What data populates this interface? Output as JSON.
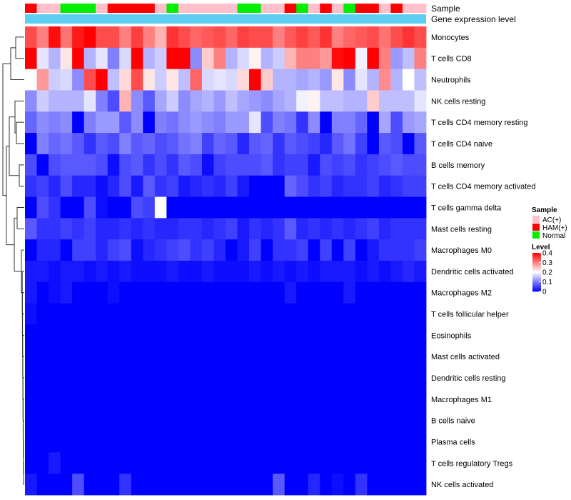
{
  "chart_data": {
    "type": "heatmap",
    "title": "",
    "annotation_rows": [
      "Sample",
      "Gene expression level"
    ],
    "gene_expression_color": "#5ecdf2",
    "sample_groups": [
      "HAM(+)",
      "AC(+)",
      "AC(+)",
      "Normal",
      "Normal",
      "Normal",
      "AC(+)",
      "HAM(+)",
      "HAM(+)",
      "HAM(+)",
      "HAM(+)",
      "AC(+)",
      "Normal",
      "AC(+)",
      "AC(+)",
      "AC(+)",
      "AC(+)",
      "AC(+)",
      "Normal",
      "Normal",
      "AC(+)",
      "AC(+)",
      "HAM(+)",
      "Normal",
      "AC(+)",
      "HAM(+)",
      "AC(+)",
      "Normal",
      "HAM(+)",
      "HAM(+)",
      "AC(+)",
      "HAM(+)",
      "AC(+)",
      "AC(+)"
    ],
    "rows": [
      "Monocytes",
      "T cells CD8",
      "Neutrophils",
      "NK cells resting",
      "T cells CD4 memory resting",
      "T cells CD4 naive",
      "B cells memory",
      "T cells CD4 memory activated",
      "T cells gamma delta",
      "Mast cells resting",
      "Macrophages M0",
      "Dendritic cells activated",
      "Macrophages M2",
      "T cells follicular helper",
      "Eosinophils",
      "Mast cells activated",
      "Dendritic cells resting",
      "Macrophages M1",
      "B cells naive",
      "Plasma cells",
      "T cells regulatory  Tregs",
      "NK cells activated"
    ],
    "values": [
      [
        0.34,
        0.3,
        0.39,
        0.31,
        0.38,
        0.4,
        0.34,
        0.34,
        0.3,
        0.35,
        0.3,
        0.26,
        0.36,
        0.34,
        0.32,
        0.33,
        0.34,
        0.32,
        0.35,
        0.34,
        0.34,
        0.3,
        0.33,
        0.35,
        0.33,
        0.36,
        0.3,
        0.32,
        0.33,
        0.34,
        0.31,
        0.34,
        0.36,
        0.34
      ],
      [
        0.4,
        0.18,
        0.14,
        0.22,
        0.4,
        0.14,
        0.18,
        0.1,
        0.17,
        0.4,
        0.14,
        0.16,
        0.4,
        0.4,
        0.11,
        0.24,
        0.3,
        0.14,
        0.17,
        0.21,
        0.14,
        0.16,
        0.26,
        0.3,
        0.3,
        0.28,
        0.39,
        0.4,
        0.19,
        0.4,
        0.3,
        0.12,
        0.15,
        0.3
      ],
      [
        0.2,
        0.28,
        0.16,
        0.17,
        0.11,
        0.34,
        0.4,
        0.15,
        0.23,
        0.34,
        0.22,
        0.16,
        0.22,
        0.15,
        0.32,
        0.17,
        0.18,
        0.17,
        0.23,
        0.4,
        0.24,
        0.14,
        0.14,
        0.13,
        0.14,
        0.12,
        0.22,
        0.11,
        0.18,
        0.14,
        0.29,
        0.14,
        0.2,
        0.15
      ],
      [
        0.11,
        0.16,
        0.14,
        0.14,
        0.14,
        0.18,
        0.1,
        0.06,
        0.26,
        0.11,
        0.07,
        0.13,
        0.16,
        0.11,
        0.13,
        0.14,
        0.12,
        0.15,
        0.13,
        0.12,
        0.11,
        0.13,
        0.14,
        0.19,
        0.21,
        0.15,
        0.15,
        0.14,
        0.14,
        0.24,
        0.15,
        0.15,
        0.15,
        0.18
      ],
      [
        0.08,
        0.11,
        0.1,
        0.11,
        0.0,
        0.1,
        0.12,
        0.12,
        0.07,
        0.11,
        0.0,
        0.1,
        0.09,
        0.11,
        0.12,
        0.11,
        0.1,
        0.12,
        0.12,
        0.18,
        0.06,
        0.1,
        0.09,
        0.04,
        0.11,
        0.0,
        0.1,
        0.1,
        0.08,
        0.0,
        0.13,
        0.06,
        0.12,
        0.13
      ],
      [
        0.0,
        0.1,
        0.08,
        0.09,
        0.07,
        0.04,
        0.07,
        0.06,
        0.1,
        0.07,
        0.08,
        0.06,
        0.07,
        0.09,
        0.1,
        0.05,
        0.08,
        0.07,
        0.03,
        0.07,
        0.08,
        0.04,
        0.07,
        0.06,
        0.05,
        0.03,
        0.07,
        0.09,
        0.05,
        0.0,
        0.07,
        0.06,
        0.0,
        0.07
      ],
      [
        0.06,
        0.0,
        0.06,
        0.07,
        0.07,
        0.07,
        0.06,
        0.01,
        0.06,
        0.07,
        0.04,
        0.06,
        0.04,
        0.07,
        0.06,
        0.01,
        0.05,
        0.06,
        0.06,
        0.06,
        0.07,
        0.04,
        0.05,
        0.05,
        0.02,
        0.06,
        0.05,
        0.06,
        0.04,
        0.05,
        0.06,
        0.07,
        0.06,
        0.06
      ],
      [
        0.04,
        0.05,
        0.03,
        0.06,
        0.03,
        0.03,
        0.01,
        0.03,
        0.06,
        0.02,
        0.07,
        0.04,
        0.05,
        0.02,
        0.03,
        0.04,
        0.03,
        0.05,
        0.02,
        0.0,
        0.0,
        0.0,
        0.08,
        0.06,
        0.04,
        0.05,
        0.03,
        0.04,
        0.04,
        0.05,
        0.03,
        0.04,
        0.05,
        0.05
      ],
      [
        0.0,
        0.06,
        0.04,
        0.0,
        0.0,
        0.06,
        0.01,
        0.0,
        0.0,
        0.06,
        0.05,
        0.2,
        0.0,
        0.0,
        0.0,
        0.0,
        0.0,
        0.0,
        0.0,
        0.0,
        0.0,
        0.0,
        0.0,
        0.0,
        0.0,
        0.0,
        0.0,
        0.0,
        0.0,
        0.0,
        0.0,
        0.0,
        0.0,
        0.0
      ],
      [
        0.07,
        0.04,
        0.04,
        0.05,
        0.04,
        0.05,
        0.03,
        0.03,
        0.04,
        0.03,
        0.04,
        0.03,
        0.03,
        0.04,
        0.04,
        0.03,
        0.04,
        0.05,
        0.02,
        0.04,
        0.03,
        0.04,
        0.07,
        0.03,
        0.04,
        0.03,
        0.04,
        0.03,
        0.04,
        0.05,
        0.03,
        0.04,
        0.04,
        0.04
      ],
      [
        0.0,
        0.03,
        0.03,
        0.0,
        0.05,
        0.05,
        0.03,
        0.05,
        0.06,
        0.01,
        0.03,
        0.04,
        0.05,
        0.06,
        0.04,
        0.05,
        0.03,
        0.0,
        0.02,
        0.05,
        0.0,
        0.04,
        0.04,
        0.05,
        0.0,
        0.05,
        0.0,
        0.05,
        0.0,
        0.02,
        0.04,
        0.04,
        0.04,
        0.05
      ],
      [
        0.02,
        0.02,
        0.01,
        0.02,
        0.02,
        0.01,
        0.02,
        0.01,
        0.02,
        0.01,
        0.01,
        0.01,
        0.02,
        0.01,
        0.01,
        0.02,
        0.01,
        0.01,
        0.01,
        0.02,
        0.01,
        0.02,
        0.01,
        0.02,
        0.01,
        0.02,
        0.02,
        0.02,
        0.01,
        0.02,
        0.01,
        0.02,
        0.03,
        0.02
      ],
      [
        0.02,
        0.0,
        0.01,
        0.02,
        0.0,
        0.0,
        0.0,
        0.01,
        0.0,
        0.0,
        0.0,
        0.0,
        0.0,
        0.0,
        0.0,
        0.0,
        0.0,
        0.0,
        0.0,
        0.0,
        0.0,
        0.0,
        0.02,
        0.0,
        0.0,
        0.0,
        0.0,
        0.02,
        0.0,
        0.0,
        0.0,
        0.0,
        0.0,
        0.0
      ],
      [
        0.01,
        0.0,
        0.0,
        0.0,
        0.0,
        0.0,
        0.0,
        0.0,
        0.0,
        0.0,
        0.0,
        0.0,
        0.0,
        0.0,
        0.0,
        0.0,
        0.0,
        0.0,
        0.0,
        0.0,
        0.0,
        0.0,
        0.0,
        0.0,
        0.0,
        0.0,
        0.0,
        0.0,
        0.0,
        0.0,
        0.0,
        0.0,
        0.0,
        0.0
      ],
      [
        0.0,
        0.0,
        0.0,
        0.0,
        0.0,
        0.0,
        0.0,
        0.0,
        0.0,
        0.0,
        0.0,
        0.0,
        0.0,
        0.0,
        0.0,
        0.0,
        0.0,
        0.0,
        0.0,
        0.0,
        0.0,
        0.0,
        0.0,
        0.0,
        0.0,
        0.0,
        0.0,
        0.0,
        0.0,
        0.0,
        0.0,
        0.0,
        0.0,
        0.0
      ],
      [
        0.0,
        0.0,
        0.0,
        0.0,
        0.0,
        0.0,
        0.0,
        0.0,
        0.0,
        0.0,
        0.0,
        0.0,
        0.0,
        0.0,
        0.0,
        0.0,
        0.0,
        0.0,
        0.0,
        0.0,
        0.0,
        0.0,
        0.0,
        0.0,
        0.0,
        0.0,
        0.0,
        0.0,
        0.0,
        0.0,
        0.0,
        0.0,
        0.0,
        0.0
      ],
      [
        0.0,
        0.0,
        0.0,
        0.0,
        0.0,
        0.0,
        0.0,
        0.0,
        0.0,
        0.0,
        0.0,
        0.0,
        0.0,
        0.0,
        0.0,
        0.0,
        0.0,
        0.0,
        0.0,
        0.0,
        0.0,
        0.0,
        0.0,
        0.0,
        0.0,
        0.0,
        0.0,
        0.0,
        0.0,
        0.0,
        0.0,
        0.0,
        0.0,
        0.0
      ],
      [
        0.0,
        0.0,
        0.0,
        0.0,
        0.0,
        0.0,
        0.0,
        0.0,
        0.0,
        0.0,
        0.0,
        0.0,
        0.0,
        0.0,
        0.0,
        0.0,
        0.0,
        0.0,
        0.0,
        0.0,
        0.0,
        0.0,
        0.0,
        0.0,
        0.0,
        0.0,
        0.0,
        0.0,
        0.0,
        0.0,
        0.0,
        0.0,
        0.0,
        0.0
      ],
      [
        0.0,
        0.0,
        0.0,
        0.0,
        0.0,
        0.0,
        0.0,
        0.0,
        0.0,
        0.0,
        0.0,
        0.0,
        0.0,
        0.0,
        0.0,
        0.0,
        0.0,
        0.0,
        0.0,
        0.0,
        0.0,
        0.0,
        0.0,
        0.0,
        0.0,
        0.0,
        0.0,
        0.0,
        0.0,
        0.0,
        0.0,
        0.0,
        0.0,
        0.0
      ],
      [
        0.0,
        0.0,
        0.0,
        0.0,
        0.0,
        0.0,
        0.0,
        0.0,
        0.0,
        0.0,
        0.0,
        0.0,
        0.0,
        0.0,
        0.0,
        0.0,
        0.0,
        0.0,
        0.0,
        0.0,
        0.0,
        0.0,
        0.0,
        0.0,
        0.0,
        0.0,
        0.0,
        0.0,
        0.0,
        0.0,
        0.0,
        0.0,
        0.0,
        0.0
      ],
      [
        0.0,
        0.0,
        0.02,
        0.0,
        0.0,
        0.0,
        0.0,
        0.0,
        0.0,
        0.0,
        0.0,
        0.0,
        0.0,
        0.0,
        0.0,
        0.0,
        0.0,
        0.0,
        0.0,
        0.0,
        0.0,
        0.0,
        0.0,
        0.0,
        0.0,
        0.0,
        0.0,
        0.0,
        0.0,
        0.0,
        0.0,
        0.0,
        0.0,
        0.0
      ],
      [
        0.02,
        0.0,
        0.0,
        0.0,
        0.06,
        0.0,
        0.0,
        0.0,
        0.04,
        0.0,
        0.0,
        0.0,
        0.0,
        0.0,
        0.0,
        0.0,
        0.0,
        0.0,
        0.0,
        0.0,
        0.0,
        0.07,
        0.0,
        0.0,
        0.03,
        0.0,
        0.01,
        0.0,
        0.04,
        0.0,
        0.0,
        0.0,
        0.0,
        0.0
      ]
    ],
    "legend": {
      "sample_title": "Sample",
      "sample_entries": [
        {
          "label": "AC(+)",
          "color": "#ffc0cb"
        },
        {
          "label": "HAM(+)",
          "color": "#ff0000"
        },
        {
          "label": "Normal",
          "color": "#00ee00"
        }
      ],
      "level_title": "Level",
      "level_ticks": [
        "0.4",
        "0.3",
        "0.2",
        "0.1",
        "0"
      ],
      "level_range": [
        0,
        0.4
      ]
    },
    "colors": {
      "low": "#0000ff",
      "mid": "#ffffff",
      "high": "#ff0000"
    },
    "dendrogram": "rows"
  }
}
